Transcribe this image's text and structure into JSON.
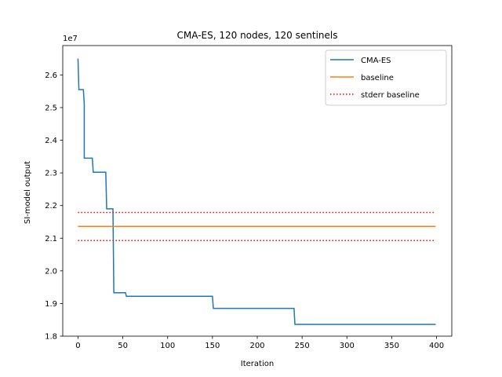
{
  "chart_data": {
    "type": "line",
    "title": "CMA-ES, 120 nodes, 120 sentinels",
    "xlabel": "Iteration",
    "ylabel": "SI-model output",
    "y_offset_label": "1e7",
    "xlim": [
      -17,
      417
    ],
    "ylim": [
      1.8,
      26.9
    ],
    "xlim_units": "iterations",
    "ylim_units": "1e6",
    "ylim_e7": [
      1.8,
      2.69
    ],
    "x_ticks": [
      0,
      50,
      100,
      150,
      200,
      250,
      300,
      350,
      400
    ],
    "y_ticks": [
      1.8,
      1.9,
      2.0,
      2.1,
      2.2,
      2.3,
      2.4,
      2.5,
      2.6
    ],
    "grid": false,
    "legend_placement": "top-right",
    "series": [
      {
        "name": "CMA-ES",
        "color": "#1f77b4",
        "style": "solid",
        "x": [
          0,
          1,
          1,
          6,
          7,
          7,
          8,
          16,
          17,
          31,
          32,
          39,
          40,
          53,
          54,
          150,
          151,
          241,
          242,
          399
        ],
        "y": [
          2.65,
          2.555,
          2.555,
          2.555,
          2.51,
          2.345,
          2.345,
          2.345,
          2.302,
          2.302,
          2.19,
          2.19,
          1.933,
          1.933,
          1.922,
          1.922,
          1.885,
          1.885,
          1.836,
          1.836
        ]
      },
      {
        "name": "baseline",
        "color": "#ff7f0e",
        "style": "solid",
        "x": [
          0,
          399
        ],
        "y": [
          2.136,
          2.136
        ]
      },
      {
        "name": "stderr baseline",
        "color": "#ff0000",
        "style": "dotted",
        "x": [
          0,
          399
        ],
        "y": [
          2.179,
          2.179
        ]
      },
      {
        "name": "stderr baseline",
        "color": "#ff0000",
        "style": "dotted",
        "x": [
          0,
          399
        ],
        "y": [
          2.093,
          2.093
        ]
      }
    ]
  },
  "colors": {
    "axis": "#000000",
    "background": "#ffffff"
  }
}
